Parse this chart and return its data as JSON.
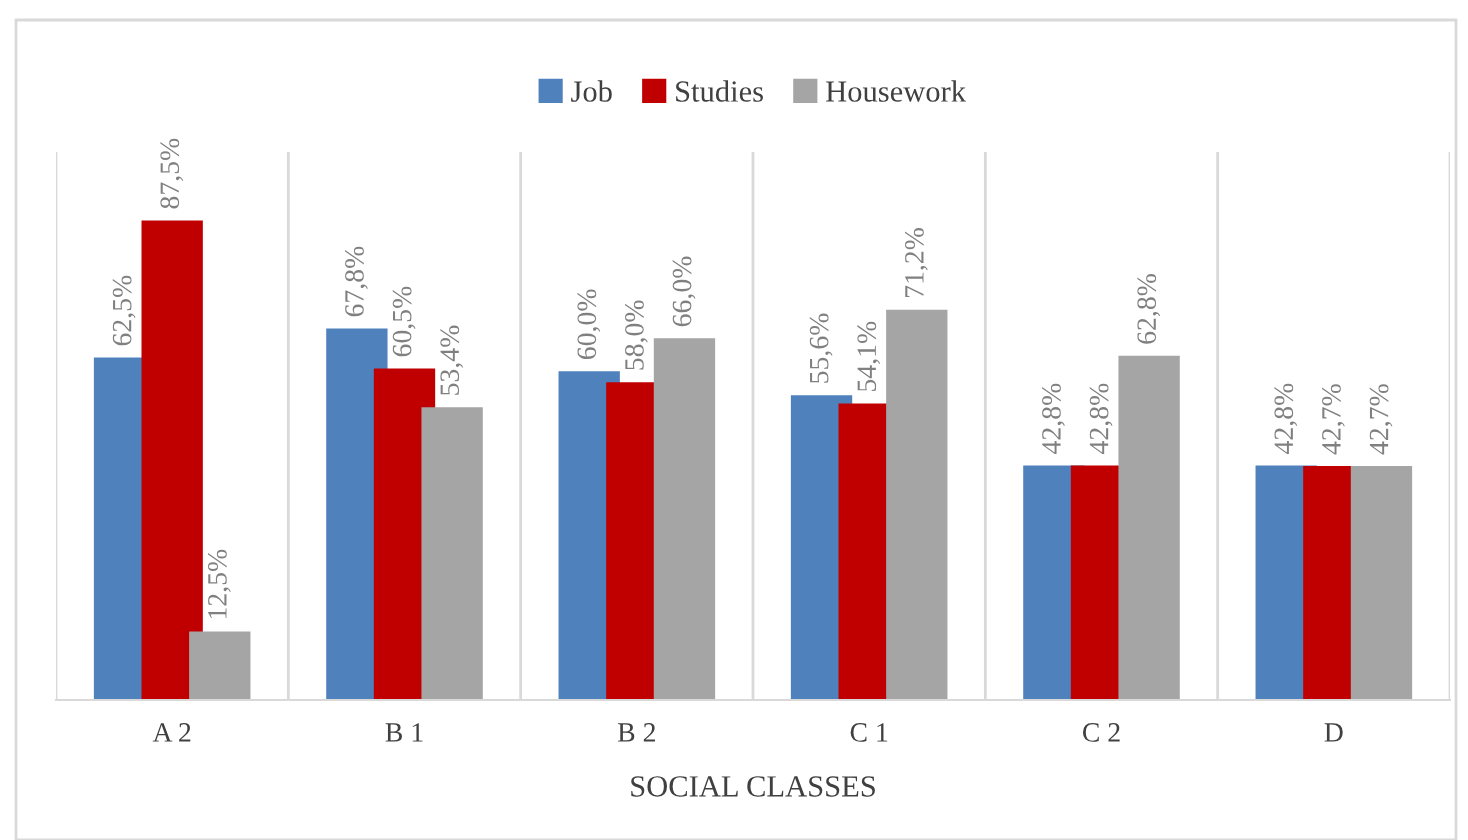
{
  "chart_data": {
    "type": "bar",
    "xlabel": "SOCIAL CLASSES",
    "categories": [
      "A 2",
      "B 1",
      "B 2",
      "C 1",
      "C 2",
      "D"
    ],
    "series": [
      {
        "name": "Job",
        "color": "#4f81bd",
        "values": [
          62.5,
          67.8,
          60.0,
          55.6,
          42.8,
          42.8
        ],
        "value_labels": [
          "62,5%",
          "67,8%",
          "60,0%",
          "55,6%",
          "42,8%",
          "42,8%"
        ]
      },
      {
        "name": "Studies",
        "color": "#c00000",
        "values": [
          87.5,
          60.5,
          58.0,
          54.1,
          42.8,
          42.7
        ],
        "value_labels": [
          "87,5%",
          "60,5%",
          "58,0%",
          "54,1%",
          "42,8%",
          "42,7%"
        ]
      },
      {
        "name": "Housework",
        "color": "#a5a5a5",
        "values": [
          12.5,
          53.4,
          66.0,
          71.2,
          62.8,
          42.7
        ],
        "value_labels": [
          "12,5%",
          "53,4%",
          "66,0%",
          "71,2%",
          "62,8%",
          "42,7%"
        ]
      }
    ],
    "ylim": [
      0,
      100
    ],
    "grid": "x",
    "legend": "top"
  }
}
